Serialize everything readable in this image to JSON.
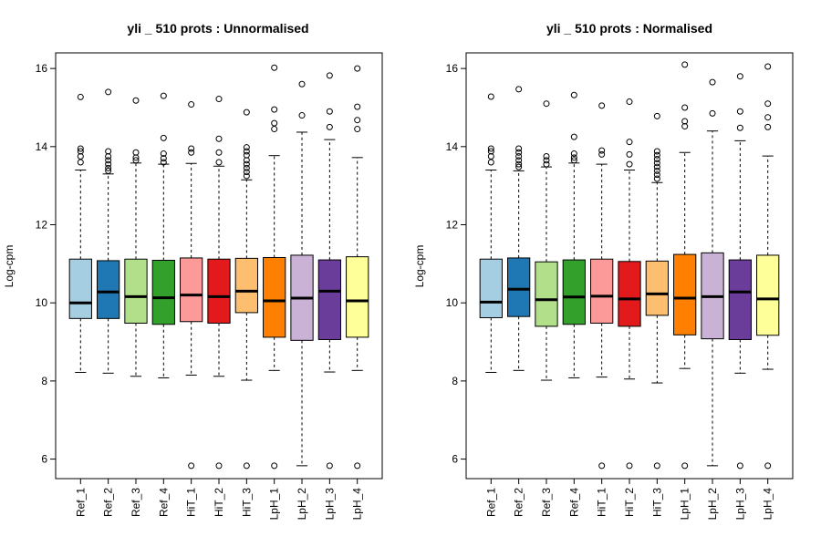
{
  "chart_data": [
    {
      "type": "boxplot",
      "title": "yli _ 510   prots : Unnormalised",
      "ylabel": "Log-cpm",
      "xlabel": "",
      "ylim": [
        5.5,
        16.4
      ],
      "yticks": [
        6,
        8,
        10,
        12,
        14,
        16
      ],
      "categories": [
        "Ref_1",
        "Ref_2",
        "Ref_3",
        "Ref_4",
        "HiT_1",
        "HiT_2",
        "HiT_3",
        "LpH_1",
        "LpH_2",
        "LpH_3",
        "LpH_4"
      ],
      "boxes": [
        {
          "lower_whisker": 8.22,
          "q1": 9.6,
          "median": 10.0,
          "q3": 11.12,
          "upper_whisker": 13.4,
          "outliers": [
            13.6,
            13.75,
            13.88,
            13.95,
            15.27
          ]
        },
        {
          "lower_whisker": 8.2,
          "q1": 9.6,
          "median": 10.28,
          "q3": 11.08,
          "upper_whisker": 13.3,
          "outliers": [
            13.38,
            13.45,
            13.55,
            13.65,
            13.75,
            13.88,
            15.4
          ]
        },
        {
          "lower_whisker": 8.12,
          "q1": 9.48,
          "median": 10.16,
          "q3": 11.12,
          "upper_whisker": 13.58,
          "outliers": [
            13.65,
            13.72,
            13.85,
            15.18
          ]
        },
        {
          "lower_whisker": 8.08,
          "q1": 9.45,
          "median": 10.13,
          "q3": 11.09,
          "upper_whisker": 13.55,
          "outliers": [
            13.6,
            13.7,
            13.82,
            14.22,
            15.3
          ]
        },
        {
          "lower_whisker": 8.15,
          "q1": 9.52,
          "median": 10.2,
          "q3": 11.15,
          "upper_whisker": 13.57,
          "outliers": [
            5.83,
            13.85,
            13.95,
            15.08
          ]
        },
        {
          "lower_whisker": 8.12,
          "q1": 9.48,
          "median": 10.16,
          "q3": 11.12,
          "upper_whisker": 13.5,
          "outliers": [
            5.83,
            13.6,
            13.85,
            14.2,
            15.22
          ]
        },
        {
          "lower_whisker": 8.02,
          "q1": 9.75,
          "median": 10.3,
          "q3": 11.14,
          "upper_whisker": 13.15,
          "outliers": [
            5.83,
            13.25,
            13.35,
            13.45,
            13.55,
            13.65,
            13.78,
            13.88,
            13.98,
            14.88
          ]
        },
        {
          "lower_whisker": 8.27,
          "q1": 9.12,
          "median": 10.05,
          "q3": 11.16,
          "upper_whisker": 13.77,
          "outliers": [
            5.83,
            14.45,
            14.6,
            14.95,
            16.02
          ]
        },
        {
          "lower_whisker": 5.83,
          "q1": 9.04,
          "median": 10.12,
          "q3": 11.22,
          "upper_whisker": 14.37,
          "outliers": [
            14.8,
            15.6
          ]
        },
        {
          "lower_whisker": 8.23,
          "q1": 9.06,
          "median": 10.3,
          "q3": 11.1,
          "upper_whisker": 14.18,
          "outliers": [
            5.83,
            14.5,
            14.9,
            15.82
          ]
        },
        {
          "lower_whisker": 8.27,
          "q1": 9.12,
          "median": 10.05,
          "q3": 11.18,
          "upper_whisker": 13.72,
          "outliers": [
            5.83,
            14.45,
            14.68,
            15.02,
            16.0
          ]
        }
      ]
    },
    {
      "type": "boxplot",
      "title": "yli _ 510   prots : Normalised",
      "ylabel": "Log-cpm",
      "xlabel": "",
      "ylim": [
        5.5,
        16.4
      ],
      "yticks": [
        6,
        8,
        10,
        12,
        14,
        16
      ],
      "categories": [
        "Ref_1",
        "Ref_2",
        "Ref_3",
        "Ref_4",
        "HiT_1",
        "HiT_2",
        "HiT_3",
        "LpH_1",
        "LpH_2",
        "LpH_3",
        "LpH_4"
      ],
      "boxes": [
        {
          "lower_whisker": 8.22,
          "q1": 9.62,
          "median": 10.02,
          "q3": 11.12,
          "upper_whisker": 13.4,
          "outliers": [
            13.6,
            13.75,
            13.88,
            13.95,
            15.28
          ]
        },
        {
          "lower_whisker": 8.27,
          "q1": 9.65,
          "median": 10.35,
          "q3": 11.15,
          "upper_whisker": 13.38,
          "outliers": [
            13.48,
            13.55,
            13.65,
            13.75,
            13.85,
            13.95,
            15.47
          ]
        },
        {
          "lower_whisker": 8.02,
          "q1": 9.4,
          "median": 10.08,
          "q3": 11.05,
          "upper_whisker": 13.48,
          "outliers": [
            13.55,
            13.65,
            13.75,
            15.1
          ]
        },
        {
          "lower_whisker": 8.08,
          "q1": 9.45,
          "median": 10.15,
          "q3": 11.1,
          "upper_whisker": 13.58,
          "outliers": [
            13.65,
            13.72,
            13.82,
            14.25,
            15.32
          ]
        },
        {
          "lower_whisker": 8.1,
          "q1": 9.48,
          "median": 10.17,
          "q3": 11.12,
          "upper_whisker": 13.55,
          "outliers": [
            5.83,
            13.8,
            13.9,
            15.05
          ]
        },
        {
          "lower_whisker": 8.05,
          "q1": 9.4,
          "median": 10.1,
          "q3": 11.06,
          "upper_whisker": 13.4,
          "outliers": [
            5.83,
            13.55,
            13.8,
            14.12,
            15.15
          ]
        },
        {
          "lower_whisker": 7.95,
          "q1": 9.68,
          "median": 10.23,
          "q3": 11.07,
          "upper_whisker": 13.08,
          "outliers": [
            5.83,
            13.18,
            13.28,
            13.38,
            13.48,
            13.58,
            13.68,
            13.78,
            13.88,
            14.78
          ]
        },
        {
          "lower_whisker": 8.32,
          "q1": 9.18,
          "median": 10.12,
          "q3": 11.24,
          "upper_whisker": 13.85,
          "outliers": [
            5.83,
            14.52,
            14.65,
            15.0,
            16.1
          ]
        },
        {
          "lower_whisker": 5.83,
          "q1": 9.08,
          "median": 10.16,
          "q3": 11.28,
          "upper_whisker": 14.4,
          "outliers": [
            14.85,
            15.65
          ]
        },
        {
          "lower_whisker": 8.2,
          "q1": 9.06,
          "median": 10.28,
          "q3": 11.1,
          "upper_whisker": 14.15,
          "outliers": [
            5.83,
            14.48,
            14.9,
            15.8
          ]
        },
        {
          "lower_whisker": 8.3,
          "q1": 9.17,
          "median": 10.1,
          "q3": 11.22,
          "upper_whisker": 13.76,
          "outliers": [
            5.83,
            14.5,
            14.75,
            15.1,
            16.05
          ]
        }
      ]
    }
  ],
  "colors": [
    "#a6cee3",
    "#1f78b4",
    "#b2df8a",
    "#33a02c",
    "#fb9a99",
    "#e31a1c",
    "#fdbf6f",
    "#ff7f00",
    "#cab2d6",
    "#6a3d9a",
    "#ffff99"
  ]
}
